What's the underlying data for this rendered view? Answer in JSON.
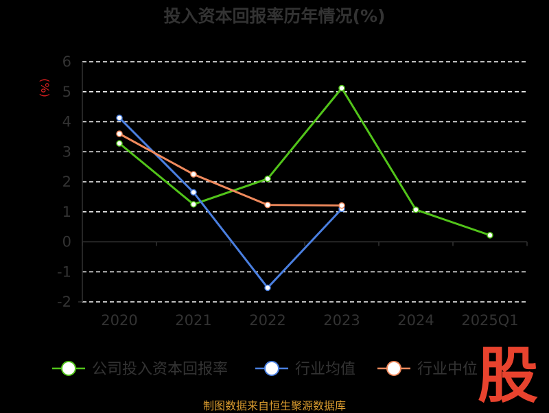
{
  "title": "投入资本回报率历年情况(%)",
  "unit_label": "(%)",
  "footer": "制图数据来自恒生聚源数据库",
  "watermark": "股",
  "colors": {
    "company": "#52C41A",
    "industry_avg": "#4A7FE0",
    "industry_median": "#F08A5D",
    "grid": "#FFFFFF",
    "axis_text": "#333333",
    "title": "#333333",
    "unit": "#E02020",
    "footer": "#D89A2E",
    "watermark": "#E8432E"
  },
  "chart_data": {
    "type": "line",
    "title": "投入资本回报率历年情况(%)",
    "ylabel": "(%)",
    "xlabel": "",
    "categories": [
      "2020",
      "2021",
      "2022",
      "2023",
      "2024",
      "2025Q1"
    ],
    "ylim": [
      -2,
      6
    ],
    "yticks": [
      -2,
      -1,
      0,
      1,
      2,
      3,
      4,
      5,
      6
    ],
    "grid": true,
    "legend_position": "bottom",
    "series": [
      {
        "name": "公司投入资本回报率",
        "color": "#52C41A",
        "values": [
          3.28,
          1.25,
          2.1,
          5.12,
          1.07,
          0.22
        ]
      },
      {
        "name": "行业均值",
        "color": "#4A7FE0",
        "values": [
          4.13,
          1.65,
          -1.53,
          1.1,
          null,
          null
        ]
      },
      {
        "name": "行业中位数",
        "color": "#F08A5D",
        "values": [
          3.6,
          2.25,
          1.23,
          1.21,
          null,
          null
        ]
      }
    ],
    "legend_visible_text": [
      "公司投入资本回报率",
      "行业均值",
      "行业中位"
    ]
  }
}
